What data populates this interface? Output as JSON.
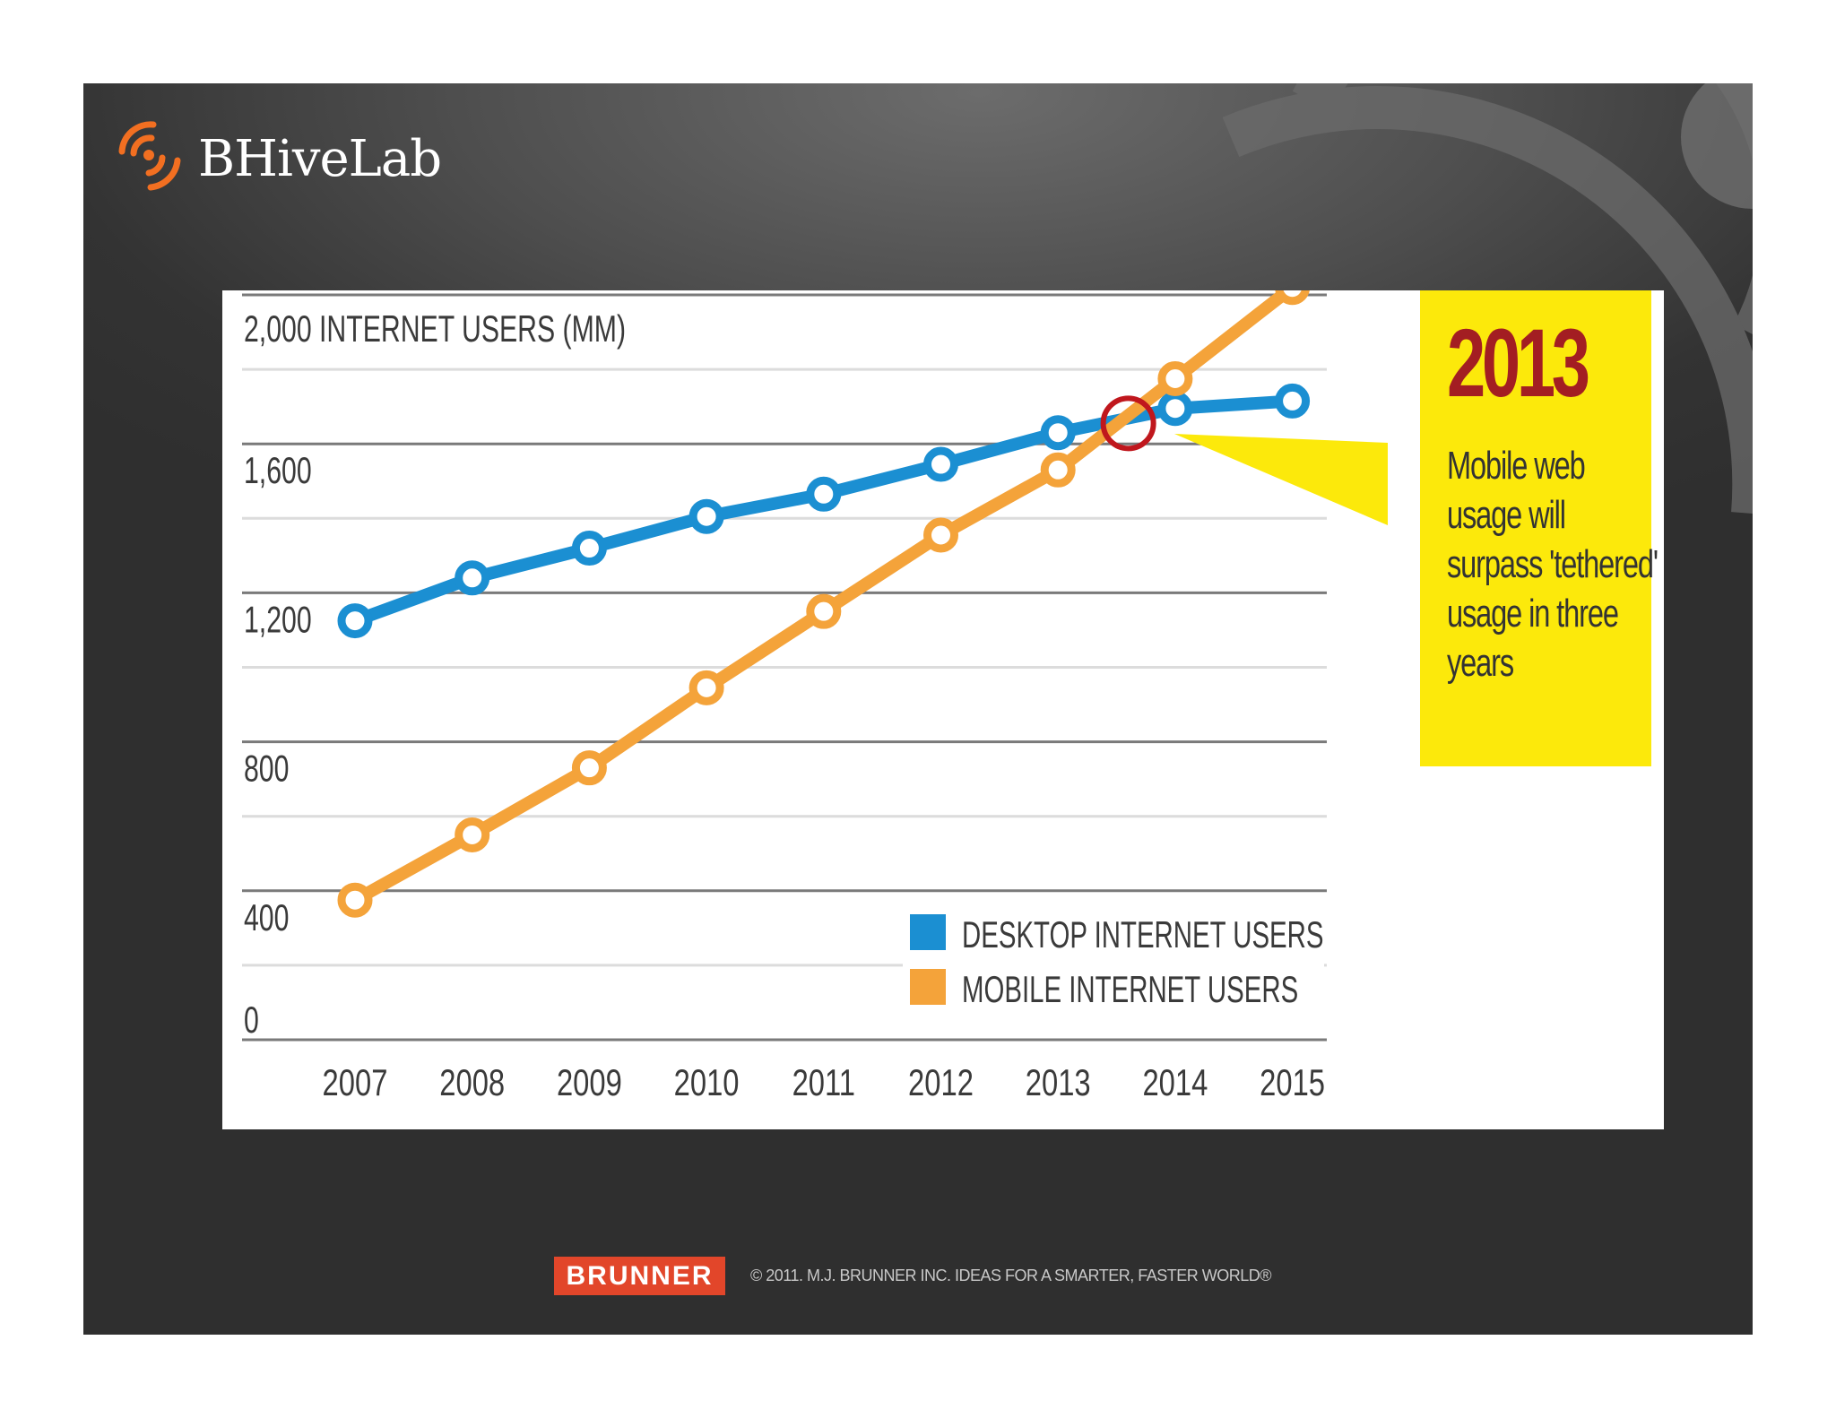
{
  "brand": {
    "name": "BHiveLab",
    "accent": "#f26f21"
  },
  "callout": {
    "year": "2013",
    "text": "Mobile web usage will surpass 'tethered' usage in three years",
    "bg_color": "#fce90b",
    "year_color": "#a31e22"
  },
  "footer": {
    "logo_text": "BRUNNER",
    "copyright": "© 2011. M.J. BRUNNER INC.  IDEAS FOR A SMARTER, FASTER WORLD®"
  },
  "chart_data": {
    "type": "line",
    "title": "",
    "ylabel": "INTERNET USERS (MM)",
    "xlabel": "",
    "categories": [
      "2007",
      "2008",
      "2009",
      "2010",
      "2011",
      "2012",
      "2013",
      "2014",
      "2015"
    ],
    "ylim": [
      0,
      2000
    ],
    "yticks": [
      0,
      400,
      800,
      1200,
      1600,
      2000
    ],
    "ytick_labels": [
      "0",
      "400",
      "800",
      "1,200",
      "1,600",
      "2,000"
    ],
    "grid": true,
    "series": [
      {
        "name": "DESKTOP INTERNET USERS",
        "color": "#1b8fd2",
        "values": [
          1125,
          1240,
          1320,
          1405,
          1465,
          1545,
          1630,
          1695,
          1715
        ]
      },
      {
        "name": "MOBILE INTERNET USERS",
        "color": "#f4a33a",
        "values": [
          375,
          550,
          730,
          945,
          1150,
          1355,
          1530,
          1775,
          2020
        ]
      }
    ],
    "annotations": [
      {
        "type": "circle-marker",
        "x": 2013.6,
        "y": 1655,
        "color": "#c0171d",
        "note": "crossover point"
      }
    ],
    "legend_position": "bottom-right"
  }
}
